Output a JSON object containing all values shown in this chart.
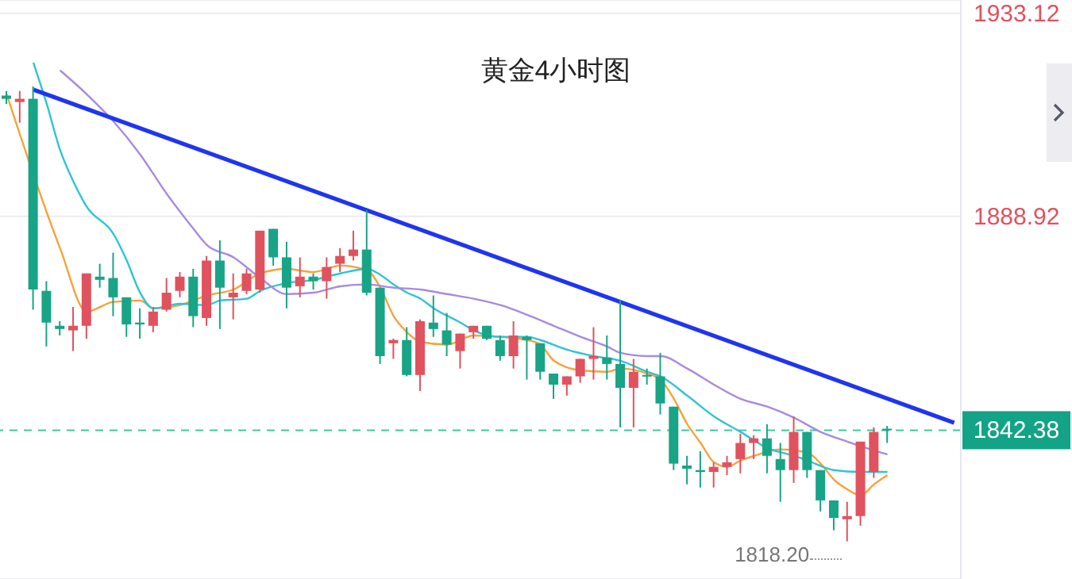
{
  "chart_data": {
    "type": "candlestick",
    "title": "黄金4小时图",
    "categories": [
      null,
      null,
      null,
      null,
      null,
      null,
      null,
      null,
      null,
      null,
      null,
      null,
      null,
      null,
      null,
      null,
      null,
      null,
      null,
      null,
      null,
      null,
      null,
      null,
      null,
      null,
      null,
      null,
      null,
      null,
      null,
      null,
      null,
      null,
      null,
      null,
      null,
      null,
      null,
      null,
      null,
      null,
      null,
      null,
      null,
      null,
      null,
      null,
      null,
      null,
      null,
      null,
      null,
      null,
      null,
      null,
      null,
      null,
      null,
      null,
      null,
      null,
      null,
      null,
      null,
      null,
      null,
      null,
      null,
      null,
      null,
      null
    ],
    "ohlc": [
      [
        1915.2,
        1916.2,
        1913.4,
        1914.5
      ],
      [
        1913.8,
        1916.2,
        1909.3,
        1914.5
      ],
      [
        1914.5,
        1917.2,
        1868.6,
        1873.0
      ],
      [
        1872.7,
        1874.8,
        1860.6,
        1865.8
      ],
      [
        1865.1,
        1866.1,
        1863.0,
        1864.4
      ],
      [
        1864.1,
        1869.2,
        1859.6,
        1865.1
      ],
      [
        1865.1,
        1876.5,
        1862.3,
        1876.5
      ],
      [
        1875.8,
        1878.6,
        1873.4,
        1875.1
      ],
      [
        1875.5,
        1881.0,
        1867.2,
        1871.3
      ],
      [
        1871.3,
        1871.3,
        1862.7,
        1865.4
      ],
      [
        1865.8,
        1868.9,
        1862.3,
        1865.4
      ],
      [
        1865.1,
        1869.2,
        1863.7,
        1868.2
      ],
      [
        1868.6,
        1875.5,
        1868.2,
        1872.3
      ],
      [
        1872.7,
        1876.8,
        1871.3,
        1875.8
      ],
      [
        1875.8,
        1877.5,
        1864.8,
        1867.2
      ],
      [
        1866.8,
        1880.3,
        1865.1,
        1879.3
      ],
      [
        1879.3,
        1883.7,
        1864.4,
        1873.4
      ],
      [
        1871.3,
        1876.5,
        1866.5,
        1872.3
      ],
      [
        1872.7,
        1877.5,
        1872.0,
        1876.5
      ],
      [
        1873.0,
        1885.8,
        1872.3,
        1885.8
      ],
      [
        1886.2,
        1886.2,
        1878.2,
        1880.0
      ],
      [
        1880.0,
        1883.4,
        1868.9,
        1873.4
      ],
      [
        1873.7,
        1880.0,
        1871.3,
        1875.8
      ],
      [
        1875.8,
        1876.5,
        1873.0,
        1874.8
      ],
      [
        1874.8,
        1880.0,
        1871.0,
        1877.9
      ],
      [
        1878.6,
        1882.0,
        1876.8,
        1880.3
      ],
      [
        1880.3,
        1885.8,
        1879.3,
        1881.7
      ],
      [
        1881.7,
        1890.3,
        1871.7,
        1872.3
      ],
      [
        1873.4,
        1873.4,
        1856.8,
        1858.5
      ],
      [
        1861.3,
        1862.3,
        1857.9,
        1862.0
      ],
      [
        1862.0,
        1864.8,
        1854.1,
        1854.4
      ],
      [
        1854.4,
        1866.5,
        1850.9,
        1866.1
      ],
      [
        1865.8,
        1871.7,
        1862.7,
        1864.4
      ],
      [
        1864.1,
        1867.9,
        1858.5,
        1861.0
      ],
      [
        1859.6,
        1863.4,
        1855.8,
        1863.4
      ],
      [
        1863.7,
        1865.1,
        1862.3,
        1865.1
      ],
      [
        1865.1,
        1865.1,
        1862.0,
        1862.3
      ],
      [
        1862.0,
        1863.0,
        1857.5,
        1858.5
      ],
      [
        1858.5,
        1866.1,
        1855.8,
        1863.0
      ],
      [
        1862.7,
        1863.0,
        1853.4,
        1862.0
      ],
      [
        1861.3,
        1861.3,
        1853.4,
        1855.1
      ],
      [
        1854.7,
        1854.7,
        1849.2,
        1852.3
      ],
      [
        1852.3,
        1854.1,
        1849.9,
        1854.1
      ],
      [
        1854.1,
        1857.9,
        1852.7,
        1857.9
      ],
      [
        1857.9,
        1864.8,
        1853.4,
        1858.5
      ],
      [
        1858.2,
        1863.0,
        1853.4,
        1856.8
      ],
      [
        1856.8,
        1870.6,
        1843.0,
        1851.6
      ],
      [
        1851.6,
        1857.9,
        1843.0,
        1855.1
      ],
      [
        1854.4,
        1855.8,
        1852.3,
        1854.1
      ],
      [
        1854.1,
        1859.2,
        1845.8,
        1848.2
      ],
      [
        1847.5,
        1847.5,
        1833.7,
        1835.1
      ],
      [
        1834.7,
        1836.8,
        1830.6,
        1834.0
      ],
      [
        1833.7,
        1837.8,
        1829.9,
        1833.3
      ],
      [
        1833.3,
        1835.4,
        1829.9,
        1834.4
      ],
      [
        1834.4,
        1836.8,
        1832.6,
        1835.4
      ],
      [
        1836.1,
        1841.6,
        1833.0,
        1839.6
      ],
      [
        1839.6,
        1841.3,
        1836.1,
        1840.6
      ],
      [
        1840.6,
        1843.7,
        1833.0,
        1836.8
      ],
      [
        1836.1,
        1839.6,
        1826.8,
        1833.7
      ],
      [
        1833.7,
        1845.4,
        1830.9,
        1842.0
      ],
      [
        1842.0,
        1842.0,
        1832.0,
        1833.7
      ],
      [
        1833.7,
        1833.7,
        1824.7,
        1827.1
      ],
      [
        1827.1,
        1827.1,
        1820.6,
        1823.3
      ],
      [
        1823.0,
        1826.8,
        1818.2,
        1823.7
      ],
      [
        1823.7,
        1839.9,
        1821.6,
        1839.9
      ],
      [
        1833.3,
        1843.0,
        1832.0,
        1842.0
      ],
      [
        1842.7,
        1843.3,
        1839.6,
        1842.38
      ],
      null,
      null,
      null,
      null,
      null
    ],
    "colors": [
      "#18a486",
      "#e0525e",
      "#18a486",
      "#18a486",
      "#18a486",
      "#e0525e",
      "#e0525e",
      "#18a486",
      "#18a486",
      "#18a486",
      "#18a486",
      "#e0525e",
      "#e0525e",
      "#e0525e",
      "#18a486",
      "#e0525e",
      "#18a486",
      "#e0525e",
      "#e0525e",
      "#e0525e",
      "#18a486",
      "#18a486",
      "#e0525e",
      "#18a486",
      "#e0525e",
      "#e0525e",
      "#e0525e",
      "#18a486",
      "#18a486",
      "#e0525e",
      "#18a486",
      "#e0525e",
      "#18a486",
      "#18a486",
      "#e0525e",
      "#e0525e",
      "#18a486",
      "#18a486",
      "#e0525e",
      "#18a486",
      "#18a486",
      "#18a486",
      "#e0525e",
      "#e0525e",
      "#e0525e",
      "#18a486",
      "#18a486",
      "#e0525e",
      "#18a486",
      "#18a486",
      "#18a486",
      "#18a486",
      "#18a486",
      "#e0525e",
      "#e0525e",
      "#e0525e",
      "#e0525e",
      "#18a486",
      "#18a486",
      "#e0525e",
      "#18a486",
      "#18a486",
      "#18a486",
      "#e0525e",
      "#e0525e",
      "#e0525e",
      "#18a486",
      null,
      null,
      null,
      null,
      null
    ],
    "series": [
      {
        "type": "line",
        "color": "#f7a23b",
        "values": [
          1915.5,
          null,
          null,
          null,
          1882.0,
          null,
          1868.2,
          null,
          1870.3,
          null,
          1870.6,
          1868.9,
          null,
          1869.6,
          null,
          1871.7,
          null,
          1873.0,
          null,
          1876.5,
          null,
          1877.5,
          null,
          1876.8,
          null,
          1878.2,
          null,
          1877.2,
          1873.4,
          1867.2,
          1863.7,
          1861.6,
          null,
          1861.0,
          null,
          1863.0,
          null,
          1862.7,
          null,
          1862.0,
          1861.0,
          1857.5,
          null,
          1855.4,
          null,
          1855.1,
          1855.8,
          null,
          1854.7,
          1853.4,
          1849.2,
          1843.7,
          1839.6,
          1835.4,
          1834.4,
          1835.8,
          1836.8,
          null,
          1838.2,
          null,
          1837.5,
          1835.1,
          1831.6,
          1829.5,
          1828.2,
          1830.6,
          1832.6,
          null,
          null,
          null,
          null,
          null
        ]
      },
      {
        "type": "line",
        "color": "#2ec4d6",
        "values": [
          null,
          null,
          1922.4,
          1913.4,
          1903.4,
          1896.5,
          1891.0,
          null,
          1885.1,
          1879.3,
          1872.3,
          1868.9,
          null,
          1869.9,
          null,
          1869.6,
          1870.6,
          null,
          1871.0,
          1872.7,
          null,
          1874.4,
          null,
          1875.1,
          null,
          1876.5,
          null,
          1877.5,
          1876.2,
          1874.1,
          1872.3,
          1871.0,
          1868.9,
          null,
          1865.8,
          1864.1,
          null,
          1862.7,
          null,
          1862.7,
          1862.0,
          null,
          1859.9,
          null,
          1858.5,
          null,
          1857.5,
          null,
          1855.1,
          1854.1,
          null,
          1849.9,
          null,
          1845.4,
          null,
          1842.0,
          null,
          1838.5,
          null,
          1836.8,
          1835.8,
          null,
          1833.7,
          null,
          1833.3,
          null,
          1833.3,
          null,
          null,
          null,
          null,
          null
        ]
      },
      {
        "type": "line",
        "color": "#a78be0",
        "values": [
          null,
          null,
          null,
          null,
          1920.7,
          null,
          1915.5,
          null,
          1909.6,
          null,
          1902.4,
          null,
          1893.8,
          null,
          1886.2,
          1882.7,
          null,
          1880.0,
          null,
          1875.5,
          null,
          1872.0,
          null,
          1872.3,
          null,
          1873.7,
          null,
          1874.1,
          null,
          1873.4,
          null,
          1873.0,
          null,
          1872.0,
          null,
          1871.0,
          null,
          1869.6,
          null,
          1867.5,
          null,
          1865.1,
          null,
          1862.7,
          null,
          1860.6,
          1859.2,
          null,
          1858.5,
          1858.5,
          null,
          1855.8,
          null,
          1852.3,
          null,
          1849.2,
          null,
          1847.5,
          null,
          1845.1,
          null,
          1842.0,
          null,
          1839.9,
          1838.9,
          null,
          1837.1,
          null,
          null,
          null,
          null,
          null
        ]
      },
      {
        "type": "line",
        "color": "#1f35f0",
        "values": [
          null,
          null,
          1916.5,
          null,
          null,
          null,
          null,
          null,
          null,
          null,
          null,
          null,
          null,
          null,
          null,
          null,
          null,
          null,
          null,
          null,
          null,
          null,
          null,
          null,
          null,
          null,
          null,
          null,
          null,
          null,
          null,
          null,
          null,
          null,
          null,
          null,
          null,
          null,
          null,
          null,
          null,
          null,
          null,
          null,
          null,
          null,
          null,
          null,
          null,
          null,
          null,
          null,
          null,
          null,
          null,
          null,
          null,
          null,
          null,
          null,
          null,
          null,
          null,
          null,
          null,
          null,
          null,
          null,
          null,
          null,
          null,
          1844.0
        ]
      }
    ],
    "ylim": [
      1810,
      1936
    ],
    "yticks": [
      1933.12,
      1888.92
    ],
    "grid": "y",
    "tick_labels": "y",
    "ref_lines": [
      {
        "axis": "y",
        "value": 1842.38,
        "label": "1842.38",
        "color": "#3cc9a0",
        "line_style": "dashed"
      }
    ],
    "annotations": [
      "1818.20"
    ]
  }
}
